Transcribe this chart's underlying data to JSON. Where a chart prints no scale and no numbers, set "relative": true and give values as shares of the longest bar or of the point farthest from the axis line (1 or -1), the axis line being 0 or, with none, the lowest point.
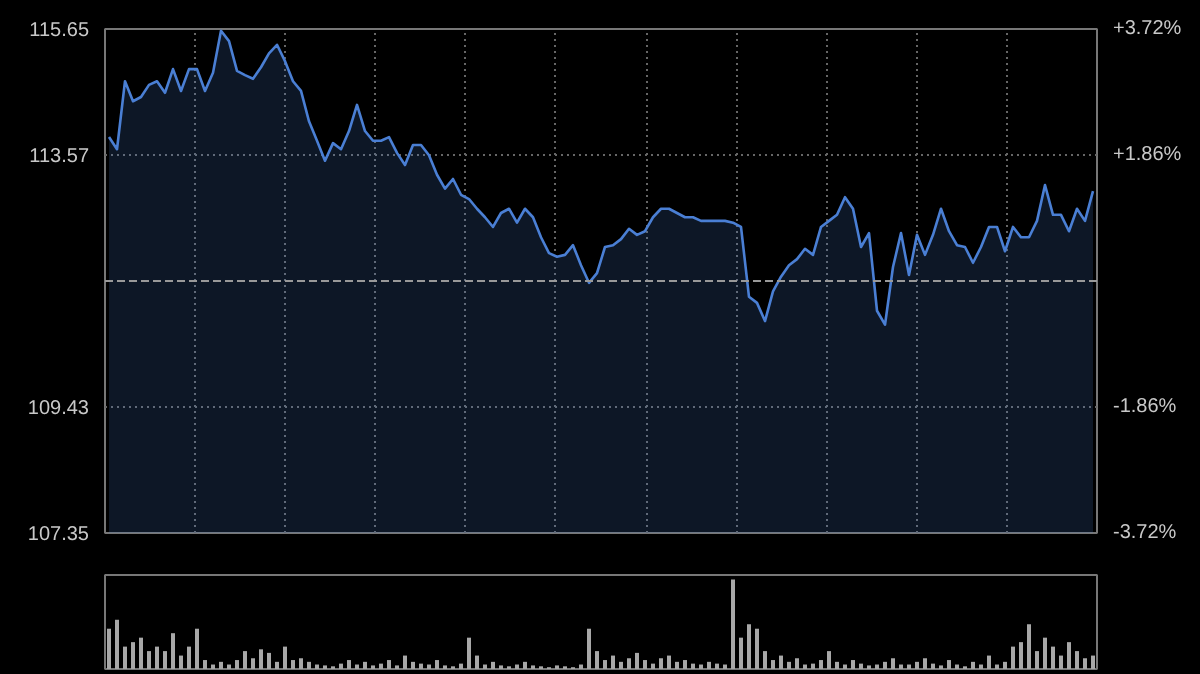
{
  "chart_data": [
    {
      "type": "area",
      "categories": [
        null,
        null,
        null,
        null,
        null,
        null,
        null,
        null,
        null,
        null,
        null,
        null,
        null,
        null,
        null,
        null,
        null,
        null,
        null,
        null,
        null,
        null,
        null,
        null,
        null,
        null,
        null,
        null,
        null,
        null,
        null,
        null,
        null,
        null,
        null,
        null,
        null,
        null,
        null,
        null,
        null,
        null,
        null,
        null,
        null,
        null,
        null,
        null,
        null,
        null,
        null,
        null,
        null,
        null,
        null,
        null,
        null,
        null,
        null,
        null,
        null,
        null,
        null,
        null,
        null,
        null,
        null,
        null,
        null,
        null,
        null,
        null,
        null,
        null,
        null,
        null,
        null,
        null,
        null,
        null,
        null,
        null,
        null,
        null,
        null,
        null,
        null,
        null,
        null,
        null,
        null,
        null,
        null,
        null,
        null,
        null,
        null,
        null,
        null,
        null,
        null,
        null,
        null,
        null,
        null,
        null,
        null,
        null,
        null,
        null,
        null,
        null,
        null,
        null,
        null,
        null,
        null,
        null,
        null,
        null,
        null,
        null,
        null,
        null
      ],
      "series": [
        {
          "color": "#4a7fd4",
          "values": [
            113.87,
            113.67,
            114.79,
            114.46,
            114.53,
            114.73,
            114.79,
            114.6,
            114.99,
            114.63,
            114.99,
            114.99,
            114.63,
            114.93,
            115.62,
            115.45,
            114.96,
            114.89,
            114.83,
            115.02,
            115.25,
            115.39,
            115.12,
            114.79,
            114.63,
            114.13,
            113.81,
            113.48,
            113.77,
            113.67,
            113.97,
            114.4,
            113.97,
            113.81,
            113.81,
            113.87,
            113.61,
            113.41,
            113.74,
            113.74,
            113.57,
            113.25,
            113.02,
            113.18,
            112.92,
            112.85,
            112.69,
            112.55,
            112.39,
            112.62,
            112.69,
            112.46,
            112.69,
            112.55,
            112.22,
            111.96,
            111.9,
            111.93,
            112.09,
            111.76,
            111.47,
            111.63,
            112.06,
            112.09,
            112.19,
            112.36,
            112.26,
            112.32,
            112.55,
            112.69,
            112.69,
            112.62,
            112.55,
            112.55,
            112.49,
            112.49,
            112.49,
            112.49,
            112.46,
            112.39,
            111.24,
            111.14,
            110.84,
            111.33,
            111.57,
            111.76,
            111.86,
            112.03,
            111.93,
            112.39,
            112.49,
            112.59,
            112.88,
            112.69,
            112.06,
            112.29,
            111.01,
            110.78,
            111.73,
            112.29,
            111.6,
            112.26,
            111.93,
            112.26,
            112.69,
            112.32,
            112.09,
            112.06,
            111.8,
            112.06,
            112.39,
            112.39,
            111.99,
            112.39,
            112.22,
            112.22,
            112.49,
            113.08,
            112.59,
            112.59,
            112.32,
            112.69,
            112.49,
            112.98
          ]
        }
      ],
      "ylim": [
        107.35,
        115.65
      ],
      "yticks": [
        107.35,
        109.43,
        113.57,
        115.65
      ],
      "y2lim": [
        -3.72,
        3.72
      ],
      "y2ticks": [
        {
          "value": -3.72,
          "label": "-3.72%"
        },
        {
          "value": -1.86,
          "label": "-1.86%"
        },
        {
          "value": 1.86,
          "label": "+1.86%"
        },
        {
          "value": 3.72,
          "label": "+3.72%"
        }
      ],
      "ref_lines": [
        {
          "axis": "y",
          "value": 111.5,
          "line_style": "dashed"
        }
      ],
      "grid": true
    },
    {
      "type": "bar",
      "relative": true,
      "categories": [
        null,
        null,
        null,
        null,
        null,
        null,
        null,
        null,
        null,
        null,
        null,
        null,
        null,
        null,
        null,
        null,
        null,
        null,
        null,
        null,
        null,
        null,
        null,
        null,
        null,
        null,
        null,
        null,
        null,
        null,
        null,
        null,
        null,
        null,
        null,
        null,
        null,
        null,
        null,
        null,
        null,
        null,
        null,
        null,
        null,
        null,
        null,
        null,
        null,
        null,
        null,
        null,
        null,
        null,
        null,
        null,
        null,
        null,
        null,
        null,
        null,
        null,
        null,
        null,
        null,
        null,
        null,
        null,
        null,
        null,
        null,
        null,
        null,
        null,
        null,
        null,
        null,
        null,
        null,
        null,
        null,
        null,
        null,
        null,
        null,
        null,
        null,
        null,
        null,
        null,
        null,
        null,
        null,
        null,
        null,
        null,
        null,
        null,
        null,
        null,
        null,
        null,
        null,
        null,
        null,
        null,
        null,
        null,
        null,
        null,
        null,
        null,
        null,
        null,
        null,
        null,
        null,
        null,
        null,
        null,
        null,
        null,
        null,
        null
      ],
      "series": [
        {
          "color": "#a8a8a8",
          "values": [
            0.45,
            0.55,
            0.25,
            0.3,
            0.35,
            0.2,
            0.25,
            0.2,
            0.4,
            0.15,
            0.25,
            0.45,
            0.1,
            0.05,
            0.08,
            0.05,
            0.1,
            0.2,
            0.12,
            0.22,
            0.18,
            0.08,
            0.25,
            0.1,
            0.12,
            0.08,
            0.05,
            0.04,
            0.03,
            0.06,
            0.1,
            0.05,
            0.08,
            0.04,
            0.06,
            0.1,
            0.04,
            0.15,
            0.08,
            0.06,
            0.05,
            0.1,
            0.04,
            0.03,
            0.06,
            0.35,
            0.15,
            0.05,
            0.08,
            0.04,
            0.03,
            0.05,
            0.08,
            0.04,
            0.03,
            0.02,
            0.04,
            0.03,
            0.02,
            0.05,
            0.45,
            0.2,
            0.1,
            0.15,
            0.08,
            0.12,
            0.18,
            0.1,
            0.06,
            0.12,
            0.15,
            0.08,
            0.1,
            0.06,
            0.05,
            0.08,
            0.06,
            0.05,
            1.0,
            0.35,
            0.5,
            0.45,
            0.2,
            0.1,
            0.15,
            0.08,
            0.12,
            0.05,
            0.06,
            0.1,
            0.2,
            0.08,
            0.05,
            0.1,
            0.06,
            0.04,
            0.05,
            0.08,
            0.12,
            0.05,
            0.05,
            0.08,
            0.12,
            0.06,
            0.04,
            0.1,
            0.05,
            0.03,
            0.08,
            0.05,
            0.15,
            0.05,
            0.08,
            0.25,
            0.3,
            0.5,
            0.2,
            0.35,
            0.25,
            0.15,
            0.3,
            0.2,
            0.12,
            0.15
          ]
        }
      ]
    }
  ]
}
